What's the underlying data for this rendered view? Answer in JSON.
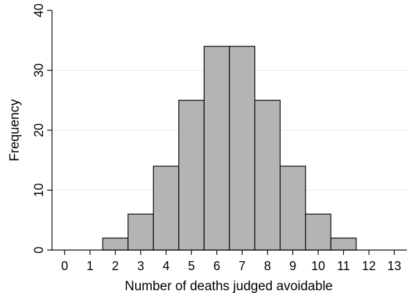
{
  "chart_data": {
    "type": "bar",
    "title": "",
    "xlabel": "Number of deaths judged avoidable",
    "ylabel": "Frequency",
    "categories": [
      2,
      3,
      4,
      5,
      6,
      7,
      8,
      9,
      10,
      11
    ],
    "values": [
      2,
      6,
      14,
      25,
      34,
      34,
      25,
      14,
      6,
      2
    ],
    "bin_width": 1,
    "xlim": [
      -0.5,
      13.5
    ],
    "ylim": [
      0,
      40
    ],
    "xticks": [
      "0",
      "1",
      "2",
      "3",
      "4",
      "5",
      "6",
      "7",
      "8",
      "9",
      "10",
      "11",
      "12",
      "13"
    ],
    "yticks": [
      "0",
      "10",
      "20",
      "30",
      "40"
    ],
    "grid": true,
    "colors": {
      "bar_fill": "#b4b4b4",
      "bar_stroke": "#000000",
      "grid": "#e8e8e8"
    }
  }
}
